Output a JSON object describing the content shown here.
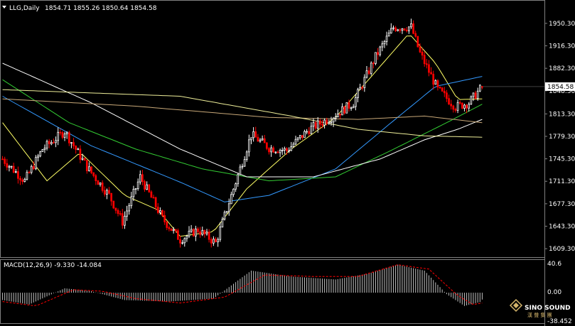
{
  "header": {
    "symbol_period": "LLG,Daily",
    "ohlc": "1854.71 1855.26 1850.64 1854.58"
  },
  "price_axis": {
    "ticks": [
      "1950.30",
      "1916.30",
      "1882.30",
      "1848.30",
      "1813.30",
      "1779.30",
      "1745.30",
      "1711.30",
      "1677.30",
      "1643.30",
      "1609.30"
    ],
    "current_price_label": "1854.58"
  },
  "macd": {
    "label": "MACD(12,26,9) -9.330 -14.084",
    "ticks": [
      "40.6",
      "0.00",
      "-38.452"
    ]
  },
  "watermark": {
    "brand": "SINO SOUND",
    "cn": "漢 聲 集 團"
  },
  "colors": {
    "background": "#000000",
    "bull_candle": "#ffffff",
    "bear_candle": "#ff0000",
    "grid_frame": "#808080",
    "ma_fast": "#ffff66",
    "ma_blue": "#3399ff",
    "ma_green": "#33cc33",
    "ma_white": "#ffffff",
    "ma_tan": "#c8a878",
    "macd_hist": "#c0c0c0",
    "macd_signal": "#ff0000"
  },
  "chart_data": [
    {
      "type": "candlestick",
      "title": "LLG,Daily",
      "ylim": [
        1603,
        1962
      ],
      "y_ticks": [
        1950.3,
        1916.3,
        1882.3,
        1848.3,
        1813.3,
        1779.3,
        1745.3,
        1711.3,
        1677.3,
        1643.3,
        1609.3
      ],
      "anchors": [
        [
          0,
          1745
        ],
        [
          10,
          1712
        ],
        [
          18,
          1760
        ],
        [
          28,
          1787
        ],
        [
          38,
          1733
        ],
        [
          48,
          1690
        ],
        [
          54,
          1650
        ],
        [
          62,
          1718
        ],
        [
          72,
          1655
        ],
        [
          80,
          1623
        ],
        [
          88,
          1638
        ],
        [
          96,
          1618
        ],
        [
          104,
          1700
        ],
        [
          112,
          1782
        ],
        [
          120,
          1762
        ],
        [
          128,
          1758
        ],
        [
          138,
          1790
        ],
        [
          148,
          1808
        ],
        [
          158,
          1830
        ],
        [
          168,
          1900
        ],
        [
          176,
          1944
        ],
        [
          184,
          1945
        ],
        [
          188,
          1905
        ],
        [
          196,
          1850
        ],
        [
          204,
          1824
        ],
        [
          210,
          1830
        ],
        [
          216,
          1855
        ]
      ],
      "count": 217,
      "last_ohlc": [
        1854.71,
        1855.26,
        1850.64,
        1854.58
      ],
      "moving_averages": [
        {
          "color": "#ffff66",
          "points": [
            [
              0,
              1800
            ],
            [
              20,
              1712
            ],
            [
              35,
              1755
            ],
            [
              55,
              1690
            ],
            [
              70,
              1668
            ],
            [
              80,
              1628
            ],
            [
              95,
              1635
            ],
            [
              110,
              1700
            ],
            [
              130,
              1760
            ],
            [
              150,
              1808
            ],
            [
              170,
              1885
            ],
            [
              183,
              1935
            ],
            [
              195,
              1890
            ],
            [
              205,
              1835
            ],
            [
              216,
              1836
            ]
          ]
        },
        {
          "color": "#3399ff",
          "points": [
            [
              0,
              1840
            ],
            [
              40,
              1765
            ],
            [
              80,
              1710
            ],
            [
              100,
              1680
            ],
            [
              120,
              1690
            ],
            [
              150,
              1730
            ],
            [
              175,
              1800
            ],
            [
              195,
              1855
            ],
            [
              216,
              1870
            ]
          ]
        },
        {
          "color": "#33cc33",
          "points": [
            [
              0,
              1865
            ],
            [
              30,
              1800
            ],
            [
              60,
              1760
            ],
            [
              90,
              1730
            ],
            [
              120,
              1712
            ],
            [
              150,
              1718
            ],
            [
              175,
              1758
            ],
            [
              200,
              1800
            ],
            [
              216,
              1828
            ]
          ]
        },
        {
          "color": "#ffffff",
          "points": [
            [
              0,
              1890
            ],
            [
              40,
              1830
            ],
            [
              80,
              1760
            ],
            [
              110,
              1718
            ],
            [
              140,
              1718
            ],
            [
              170,
              1745
            ],
            [
              190,
              1774
            ],
            [
              205,
              1790
            ],
            [
              216,
              1805
            ]
          ]
        },
        {
          "color": "#c8a878",
          "points": [
            [
              0,
              1836
            ],
            [
              60,
              1825
            ],
            [
              120,
              1808
            ],
            [
              160,
              1805
            ],
            [
              190,
              1810
            ],
            [
              216,
              1800
            ]
          ]
        },
        {
          "color": "#eeee99",
          "points": [
            [
              0,
              1850
            ],
            [
              80,
              1840
            ],
            [
              130,
              1810
            ],
            [
              160,
              1790
            ],
            [
              190,
              1780
            ],
            [
              216,
              1778
            ]
          ]
        }
      ]
    },
    {
      "type": "bar",
      "title": "MACD(12,26,9) -9.330 -14.084",
      "ylim": [
        -38.452,
        40.6
      ],
      "histogram_anchors": [
        [
          0,
          -10
        ],
        [
          12,
          -16
        ],
        [
          28,
          6
        ],
        [
          40,
          2
        ],
        [
          55,
          -10
        ],
        [
          75,
          -12
        ],
        [
          95,
          -8
        ],
        [
          112,
          30
        ],
        [
          130,
          22
        ],
        [
          150,
          18
        ],
        [
          165,
          26
        ],
        [
          178,
          38
        ],
        [
          190,
          30
        ],
        [
          200,
          -2
        ],
        [
          208,
          -18
        ],
        [
          216,
          -12
        ]
      ],
      "signal_anchors": [
        [
          0,
          -12
        ],
        [
          15,
          -18
        ],
        [
          32,
          4
        ],
        [
          45,
          2
        ],
        [
          60,
          -8
        ],
        [
          80,
          -14
        ],
        [
          100,
          -6
        ],
        [
          118,
          24
        ],
        [
          140,
          22
        ],
        [
          160,
          22
        ],
        [
          178,
          38
        ],
        [
          192,
          32
        ],
        [
          205,
          -4
        ],
        [
          212,
          -16
        ],
        [
          216,
          -14
        ]
      ],
      "last_macd": -9.33,
      "last_signal": -14.084
    }
  ]
}
